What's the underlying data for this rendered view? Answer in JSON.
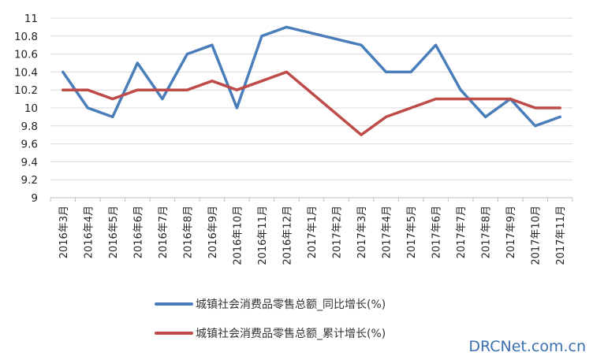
{
  "chart_data": {
    "type": "line",
    "categories": [
      "2016年3月",
      "2016年4月",
      "2016年5月",
      "2016年6月",
      "2016年7月",
      "2016年8月",
      "2016年9月",
      "2016年10月",
      "2016年11月",
      "2016年12月",
      "2017年1月",
      "2017年2月",
      "2017年3月",
      "2017年4月",
      "2017年5月",
      "2017年6月",
      "2017年7月",
      "2017年8月",
      "2017年9月",
      "2017年10月",
      "2017年11月"
    ],
    "series": [
      {
        "name": "城镇社会消费品零售总额_同比增长(%)",
        "color": "#4a7ebb",
        "values": [
          10.4,
          10.0,
          9.9,
          10.5,
          10.1,
          10.6,
          10.7,
          10.0,
          10.8,
          10.9,
          null,
          null,
          10.7,
          10.4,
          10.4,
          10.7,
          10.2,
          9.9,
          10.1,
          9.8,
          9.9
        ]
      },
      {
        "name": "城镇社会消费品零售总额_累计增长(%)",
        "color": "#be4b48",
        "values": [
          10.2,
          10.2,
          10.1,
          10.2,
          10.2,
          10.2,
          10.3,
          10.2,
          10.3,
          10.4,
          null,
          null,
          9.7,
          9.9,
          10.0,
          10.1,
          10.1,
          10.1,
          10.1,
          10.0,
          10.0
        ]
      }
    ],
    "ylim": [
      9,
      11
    ],
    "yticks": [
      "9",
      "9.2",
      "9.4",
      "9.6",
      "9.8",
      "10",
      "10.2",
      "10.4",
      "10.6",
      "10.8",
      "11"
    ],
    "grid": true,
    "legend_position": "bottom"
  },
  "watermark": "DRCNet.com.cn"
}
